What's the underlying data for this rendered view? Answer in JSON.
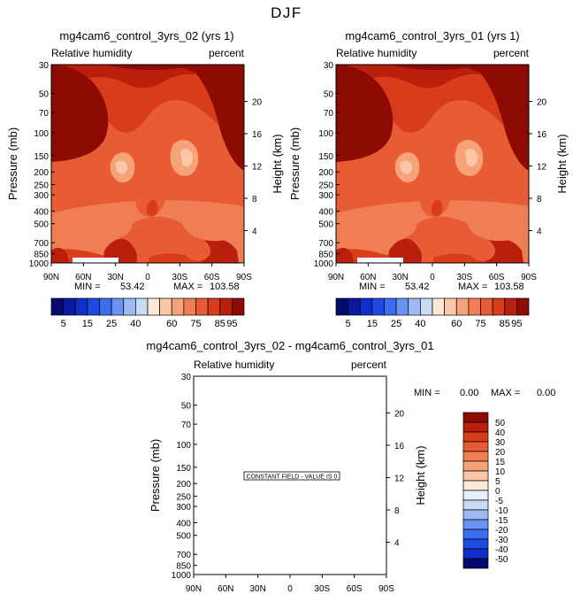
{
  "figure_title": "DJF",
  "chart_data": [
    {
      "type": "heatmap",
      "title": "mg4cam6_control_3yrs_02 (yrs 1)",
      "variable": "Relative humidity",
      "units": "percent",
      "xlabel": "",
      "ylabel": "Pressure (mb)",
      "ylabel_right": "Height (km)",
      "x_ticks": [
        "90N",
        "60N",
        "30N",
        "0",
        "30S",
        "60S",
        "90S"
      ],
      "x_lat": [
        90,
        60,
        30,
        0,
        -30,
        -60,
        -90
      ],
      "pressure_ticks": [
        "30",
        "50",
        "70",
        "100",
        "150",
        "200",
        "250",
        "300",
        "400",
        "500",
        "700",
        "850",
        "1000"
      ],
      "pressure_values": [
        30,
        50,
        70,
        100,
        150,
        200,
        250,
        300,
        400,
        500,
        700,
        850,
        1000
      ],
      "height_ticks": [
        "20",
        "16",
        "12",
        "8",
        "4"
      ],
      "height_km": [
        20,
        16,
        12,
        8,
        4
      ],
      "ylim": [
        1000,
        30
      ],
      "stats": {
        "min_label": "MIN =",
        "min": "53.42",
        "max_label": "MAX =",
        "max": "103.58"
      },
      "colorbar": {
        "orientation": "horizontal",
        "levels": [
          5,
          10,
          15,
          20,
          25,
          30,
          40,
          45,
          55,
          60,
          65,
          75,
          80,
          85,
          95
        ],
        "tick_labels": [
          "5",
          "15",
          "25",
          "40",
          "60",
          "75",
          "85",
          "95"
        ],
        "colors": [
          "#050a6e",
          "#0a1aa0",
          "#0f2fc8",
          "#1f4ae0",
          "#3c6cf0",
          "#6a93f2",
          "#9ebaf4",
          "#c8dcf8",
          "#fce8d6",
          "#f9c7a6",
          "#f6a37c",
          "#f07e55",
          "#e85c35",
          "#d83c1a",
          "#b81f0c",
          "#8e0b03"
        ]
      }
    },
    {
      "type": "heatmap",
      "title": "mg4cam6_control_3yrs_01 (yrs 1)",
      "variable": "Relative humidity",
      "units": "percent",
      "xlabel": "",
      "ylabel": "Pressure (mb)",
      "ylabel_right": "Height (km)",
      "x_ticks": [
        "90N",
        "60N",
        "30N",
        "0",
        "30S",
        "60S",
        "90S"
      ],
      "x_lat": [
        90,
        60,
        30,
        0,
        -30,
        -60,
        -90
      ],
      "pressure_ticks": [
        "30",
        "50",
        "70",
        "100",
        "150",
        "200",
        "250",
        "300",
        "400",
        "500",
        "700",
        "850",
        "1000"
      ],
      "pressure_values": [
        30,
        50,
        70,
        100,
        150,
        200,
        250,
        300,
        400,
        500,
        700,
        850,
        1000
      ],
      "height_ticks": [
        "20",
        "16",
        "12",
        "8",
        "4"
      ],
      "height_km": [
        20,
        16,
        12,
        8,
        4
      ],
      "ylim": [
        1000,
        30
      ],
      "stats": {
        "min_label": "MIN =",
        "min": "53.42",
        "max_label": "MAX =",
        "max": "103.58"
      },
      "colorbar": {
        "orientation": "horizontal",
        "levels": [
          5,
          10,
          15,
          20,
          25,
          30,
          40,
          45,
          55,
          60,
          65,
          75,
          80,
          85,
          95
        ],
        "tick_labels": [
          "5",
          "15",
          "25",
          "40",
          "60",
          "75",
          "85",
          "95"
        ],
        "colors": [
          "#050a6e",
          "#0a1aa0",
          "#0f2fc8",
          "#1f4ae0",
          "#3c6cf0",
          "#6a93f2",
          "#9ebaf4",
          "#c8dcf8",
          "#fce8d6",
          "#f9c7a6",
          "#f6a37c",
          "#f07e55",
          "#e85c35",
          "#d83c1a",
          "#b81f0c",
          "#8e0b03"
        ]
      }
    },
    {
      "type": "heatmap",
      "title": "mg4cam6_control_3yrs_02 - mg4cam6_control_3yrs_01",
      "variable": "Relative humidity",
      "units": "percent",
      "xlabel": "",
      "ylabel": "Pressure (mb)",
      "ylabel_right": "Height (km)",
      "x_ticks": [
        "90N",
        "60N",
        "30N",
        "0",
        "30S",
        "60S",
        "90S"
      ],
      "x_lat": [
        90,
        60,
        30,
        0,
        -30,
        -60,
        -90
      ],
      "pressure_ticks": [
        "30",
        "50",
        "70",
        "100",
        "150",
        "200",
        "250",
        "300",
        "400",
        "500",
        "700",
        "850",
        "1000"
      ],
      "pressure_values": [
        30,
        50,
        70,
        100,
        150,
        200,
        250,
        300,
        400,
        500,
        700,
        850,
        1000
      ],
      "height_ticks": [
        "20",
        "16",
        "12",
        "8",
        "4"
      ],
      "height_km": [
        20,
        16,
        12,
        8,
        4
      ],
      "ylim": [
        1000,
        30
      ],
      "stats": {
        "min_label": "MIN =",
        "min": "0.00",
        "max_label": "MAX =",
        "max": "0.00"
      },
      "annotation": "CONSTANT FIELD - VALUE IS 0",
      "colorbar": {
        "orientation": "vertical",
        "levels": [
          50,
          40,
          30,
          20,
          15,
          10,
          5,
          0,
          -5,
          -10,
          -15,
          -20,
          -30,
          -40,
          -50
        ],
        "tick_labels": [
          "50",
          "40",
          "30",
          "20",
          "15",
          "10",
          "5",
          "0",
          "-5",
          "-10",
          "-15",
          "-20",
          "-30",
          "-40",
          "-50"
        ],
        "colors": [
          "#8e0b03",
          "#b81f0c",
          "#d83c1a",
          "#e85c35",
          "#f07e55",
          "#f6a37c",
          "#f9c7a6",
          "#fce8d6",
          "#e8f0fc",
          "#c8dcf8",
          "#9ebaf4",
          "#6a93f2",
          "#3c6cf0",
          "#1f4ae0",
          "#0f2fc8",
          "#050a6e"
        ]
      }
    }
  ]
}
